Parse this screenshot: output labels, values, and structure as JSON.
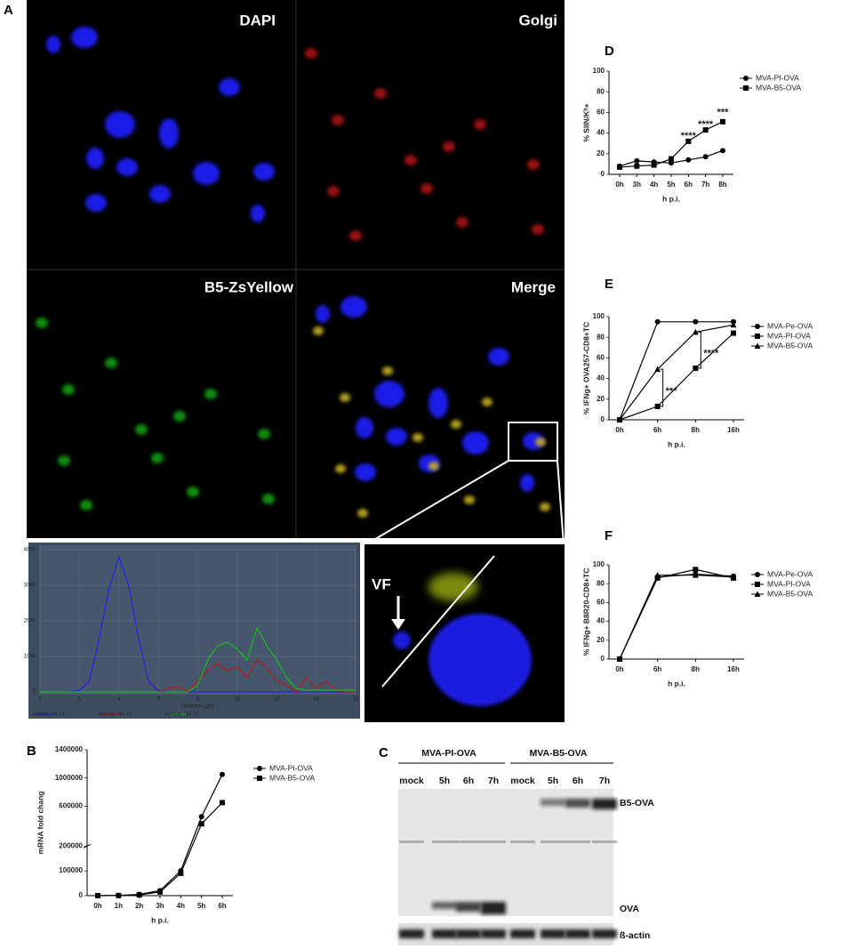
{
  "figure": {
    "panel_A": "A",
    "panel_C": "C",
    "image_labels": [
      "DAPI",
      "Golgi",
      "B5-ZsYellow",
      "Merge"
    ],
    "zoom_label": "VF",
    "blot": {
      "groups": [
        "MVA-PI-OVA",
        "MVA-B5-OVA"
      ],
      "lanes": [
        "mock",
        "5h",
        "6h",
        "7h",
        "mock",
        "5h",
        "6h",
        "7h"
      ],
      "bands": [
        "B5-OVA",
        "OVA",
        "ß-actin"
      ]
    }
  },
  "chart_data": [
    {
      "type": "line",
      "panel_label": "D",
      "categories": [
        "0h",
        "3h",
        "4h",
        "5h",
        "6h",
        "7h",
        "8h"
      ],
      "series": [
        {
          "name": "MVA-PI-OVA",
          "color": "#000000",
          "marker": "circle",
          "values": [
            8,
            13,
            12,
            11,
            14,
            17,
            23
          ]
        },
        {
          "name": "MVA-B5-OVA",
          "color": "#000000",
          "marker": "square",
          "values": [
            7,
            8,
            9,
            15,
            32,
            43,
            51
          ]
        }
      ],
      "ylim": [
        0,
        100
      ],
      "yticks": [
        0,
        20,
        40,
        60,
        80,
        100
      ],
      "ylabel": "% SIIN/Kᵇ+",
      "xlabel": "h p.i.",
      "annotations": [
        "****",
        "****",
        "***"
      ],
      "legend": "right"
    },
    {
      "type": "line",
      "panel_label": "E",
      "categories": [
        "0h",
        "6h",
        "8h",
        "16h"
      ],
      "series": [
        {
          "name": "MVA-Pe-OVA",
          "color": "#000000",
          "marker": "circle",
          "values": [
            0,
            95,
            95,
            95
          ]
        },
        {
          "name": "MVA-PI-OVA",
          "color": "#000000",
          "marker": "square",
          "values": [
            0,
            13,
            50,
            84
          ]
        },
        {
          "name": "MVA-B5-OVA",
          "color": "#000000",
          "marker": "triangle",
          "values": [
            0,
            49,
            85,
            92
          ]
        }
      ],
      "ylim": [
        0,
        100
      ],
      "yticks": [
        0,
        20,
        40,
        60,
        80,
        100
      ],
      "ylabel": "% IFNg+ OVA257-CD8+TC",
      "xlabel": "h p.i.",
      "annotations": [
        "***",
        "****"
      ],
      "legend": "right"
    },
    {
      "type": "line",
      "panel_label": "F",
      "categories": [
        "0h",
        "6h",
        "8h",
        "16h"
      ],
      "series": [
        {
          "name": "MVA-Pe-OVA",
          "color": "#000000",
          "marker": "circle",
          "values": [
            0,
            87,
            90,
            88
          ]
        },
        {
          "name": "MVA-PI-OVA",
          "color": "#000000",
          "marker": "square",
          "values": [
            0,
            86,
            95,
            86
          ]
        },
        {
          "name": "MVA-B5-OVA",
          "color": "#000000",
          "marker": "triangle",
          "values": [
            0,
            89,
            89,
            87
          ]
        }
      ],
      "ylim": [
        0,
        100
      ],
      "yticks": [
        0,
        20,
        40,
        60,
        80,
        100
      ],
      "ylabel": "% IFNg+ B8R20-CD8+TC",
      "xlabel": "h p.i.",
      "legend": "right"
    },
    {
      "type": "line",
      "panel_label": "B",
      "categories": [
        "0h",
        "1h",
        "2h",
        "3h",
        "4h",
        "5h",
        "6h"
      ],
      "series": [
        {
          "name": "MVA-PI-OVA",
          "color": "#000000",
          "marker": "circle",
          "values": [
            0,
            1000,
            5000,
            20000,
            100000,
            450000,
            1050000
          ]
        },
        {
          "name": "MVA-B5-OVA",
          "color": "#000000",
          "marker": "square",
          "values": [
            0,
            500,
            3000,
            15000,
            90000,
            350000,
            650000
          ]
        }
      ],
      "ylim": [
        0,
        1400000
      ],
      "ybreak": 200000,
      "yticks": [
        0,
        100000,
        200000,
        600000,
        1000000,
        1400000
      ],
      "ylabel": "mRNA fold chang",
      "xlabel": "h p.i.",
      "legend": "right"
    },
    {
      "type": "line",
      "xlabel": "Distance (µm)",
      "x": [
        0,
        0.5,
        1,
        1.5,
        2,
        2.5,
        3,
        3.5,
        4,
        4.5,
        5,
        5.5,
        6,
        6.5,
        7,
        7.5,
        8,
        8.5,
        9,
        9.5,
        10,
        10.5,
        11,
        11.5,
        12,
        12.5,
        13,
        13.5,
        14,
        14.5,
        15,
        15.5,
        16
      ],
      "series": [
        {
          "name": "Intensity Ch1-T1",
          "color": "#1a1aff",
          "values": [
            0,
            0,
            0,
            0,
            50,
            300,
            1500,
            2900,
            3800,
            3000,
            1500,
            300,
            30,
            0,
            0,
            0,
            0,
            0,
            0,
            0,
            0,
            0,
            0,
            0,
            0,
            0,
            0,
            0,
            0,
            0,
            0,
            0,
            0
          ]
        },
        {
          "name": "Intensity Ch2-T2",
          "color": "#cc1010",
          "values": [
            0,
            0,
            0,
            0,
            0,
            0,
            0,
            0,
            0,
            0,
            0,
            0,
            0,
            100,
            150,
            0,
            300,
            600,
            800,
            600,
            700,
            400,
            900,
            700,
            300,
            200,
            0,
            400,
            100,
            300,
            50,
            0,
            0
          ]
        },
        {
          "name": "Intensity Ch3-T3",
          "color": "#10d010",
          "values": [
            0,
            0,
            0,
            0,
            0,
            0,
            0,
            0,
            0,
            0,
            0,
            0,
            0,
            0,
            0,
            0,
            200,
            900,
            1300,
            1400,
            1200,
            900,
            1800,
            1300,
            900,
            400,
            100,
            50,
            50,
            50,
            50,
            50,
            50
          ]
        }
      ],
      "xlim": [
        0,
        16
      ],
      "xticks": [
        0,
        2,
        4,
        6,
        8,
        10,
        12,
        14,
        16
      ],
      "ylim": [
        0,
        4000
      ],
      "yticks": [
        0,
        1000,
        2000,
        3000,
        4000
      ]
    }
  ]
}
